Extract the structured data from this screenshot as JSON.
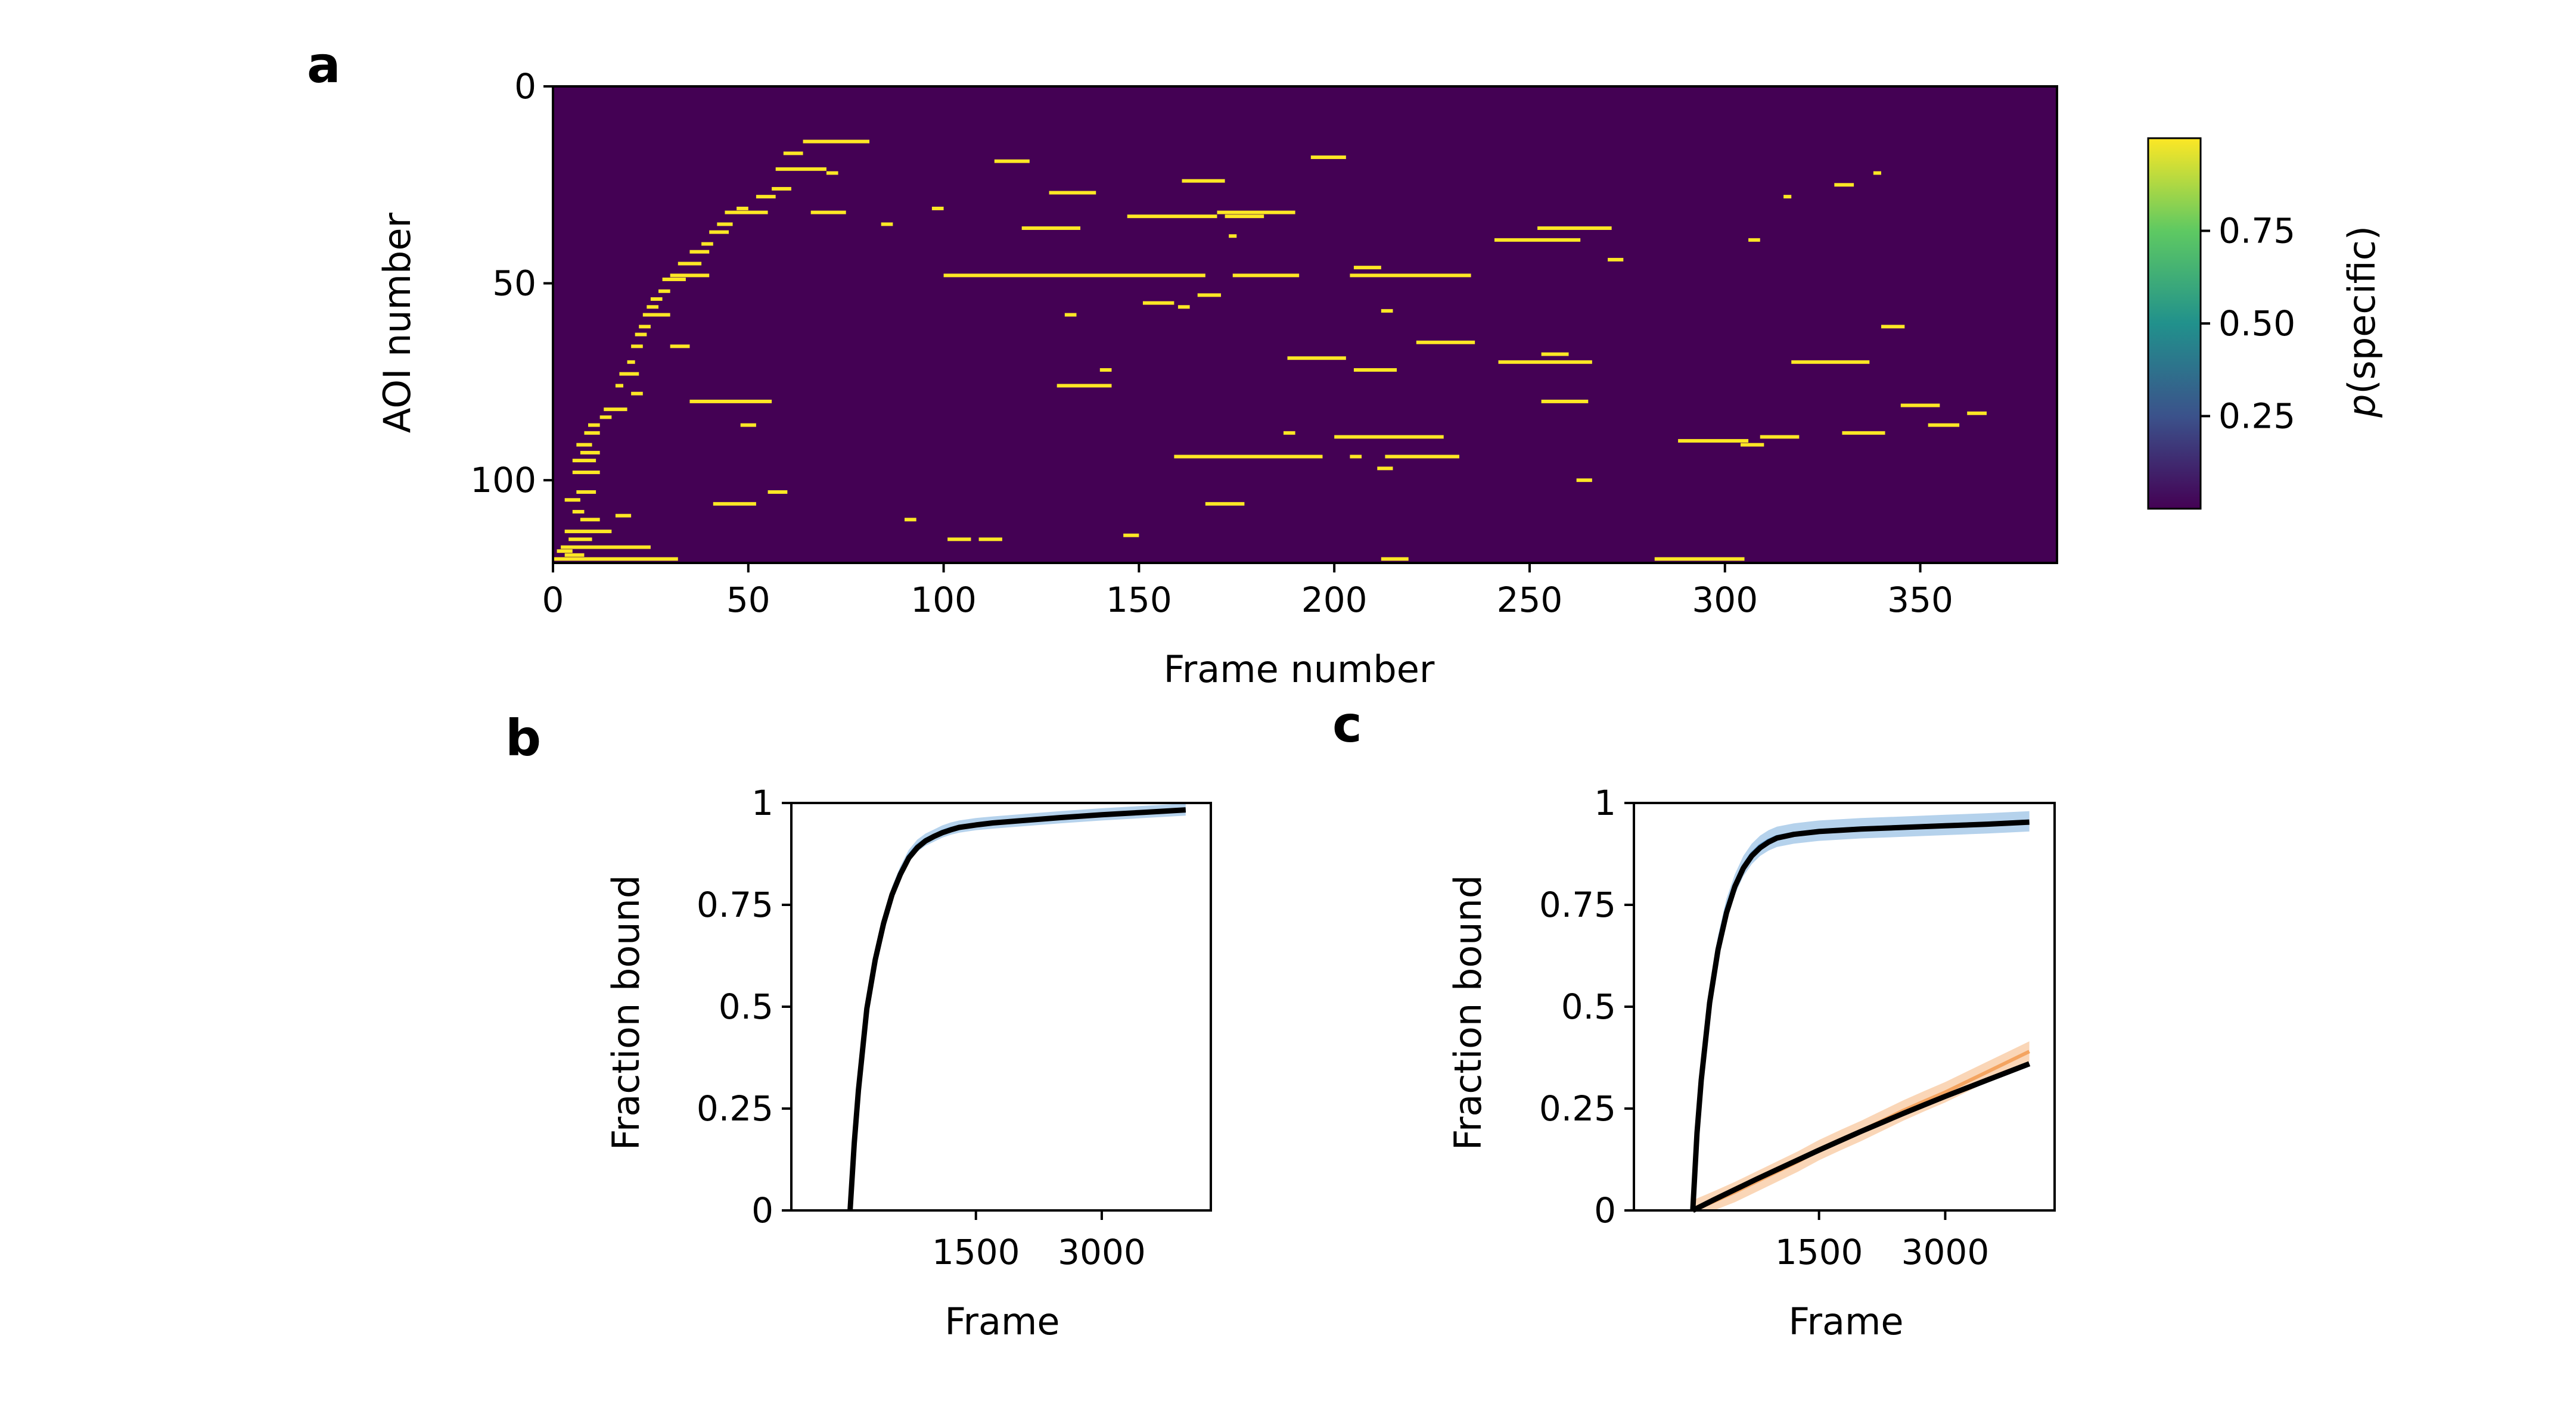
{
  "chart_data": [
    {
      "type": "heatmap",
      "panel_label": "a",
      "xlabel": "Frame number",
      "ylabel": "AOI number",
      "xlim": [
        0,
        385
      ],
      "ylim": [
        121,
        0
      ],
      "xticks": [
        0,
        50,
        100,
        150,
        200,
        250,
        300,
        350
      ],
      "yticks": [
        0,
        50,
        100
      ],
      "colorbar": {
        "label_prefix": "p",
        "label_suffix": "(specific)",
        "ticks": [
          "0.25",
          "0.50",
          "0.75"
        ],
        "range": [
          0,
          1
        ],
        "colors": [
          "#440154",
          "#3b528b",
          "#21918c",
          "#5ec962",
          "#fde725"
        ]
      },
      "background_color": "#440154",
      "segment_color": "#fde725",
      "segments": [
        [
          120,
          0,
          32
        ],
        [
          119,
          3,
          8
        ],
        [
          118,
          1,
          5
        ],
        [
          117,
          2,
          25
        ],
        [
          115,
          4,
          10
        ],
        [
          113,
          3,
          15
        ],
        [
          110,
          7,
          12
        ],
        [
          109,
          16,
          20
        ],
        [
          108,
          5,
          8
        ],
        [
          106,
          41,
          52
        ],
        [
          105,
          3,
          7
        ],
        [
          103,
          6,
          11
        ],
        [
          98,
          5,
          12
        ],
        [
          95,
          5,
          11
        ],
        [
          93,
          7,
          12
        ],
        [
          91,
          6,
          10
        ],
        [
          88,
          8,
          12
        ],
        [
          86,
          9,
          12
        ],
        [
          84,
          12,
          15
        ],
        [
          82,
          13,
          19
        ],
        [
          80,
          35,
          56
        ],
        [
          78,
          20,
          23
        ],
        [
          76,
          16,
          18
        ],
        [
          73,
          17,
          22
        ],
        [
          70,
          19,
          21
        ],
        [
          66,
          20,
          23
        ],
        [
          63,
          21,
          24
        ],
        [
          61,
          22,
          25
        ],
        [
          58,
          23,
          30
        ],
        [
          56,
          24,
          27
        ],
        [
          54,
          25,
          28
        ],
        [
          52,
          27,
          30
        ],
        [
          49,
          28,
          34
        ],
        [
          48,
          30,
          40
        ],
        [
          45,
          32,
          38
        ],
        [
          42,
          35,
          40
        ],
        [
          40,
          38,
          41
        ],
        [
          37,
          40,
          45
        ],
        [
          35,
          42,
          46
        ],
        [
          32,
          44,
          55
        ],
        [
          31,
          47,
          50
        ],
        [
          28,
          52,
          57
        ],
        [
          26,
          56,
          61
        ],
        [
          21,
          57,
          70
        ],
        [
          17,
          59,
          64
        ],
        [
          14,
          64,
          81
        ],
        [
          32,
          66,
          75
        ],
        [
          48,
          100,
          167
        ],
        [
          48,
          174,
          191
        ],
        [
          48,
          204,
          235
        ],
        [
          55,
          151,
          159
        ],
        [
          56,
          160,
          163
        ],
        [
          53,
          165,
          171
        ],
        [
          19,
          113,
          122
        ],
        [
          27,
          127,
          139
        ],
        [
          36,
          120,
          135
        ],
        [
          33,
          147,
          170
        ],
        [
          33,
          172,
          182
        ],
        [
          24,
          161,
          172
        ],
        [
          32,
          170,
          190
        ],
        [
          38,
          173,
          175
        ],
        [
          18,
          194,
          203
        ],
        [
          46,
          205,
          212
        ],
        [
          69,
          188,
          203
        ],
        [
          72,
          205,
          216
        ],
        [
          65,
          221,
          236
        ],
        [
          94,
          159,
          197
        ],
        [
          94,
          204,
          207
        ],
        [
          94,
          213,
          232
        ],
        [
          89,
          200,
          228
        ],
        [
          97,
          211,
          215
        ],
        [
          76,
          129,
          143
        ],
        [
          115,
          109,
          115
        ],
        [
          115,
          101,
          107
        ],
        [
          106,
          167,
          177
        ],
        [
          39,
          241,
          263
        ],
        [
          36,
          252,
          271
        ],
        [
          70,
          242,
          266
        ],
        [
          68,
          253,
          260
        ],
        [
          28,
          315,
          317
        ],
        [
          44,
          270,
          274
        ],
        [
          80,
          253,
          265
        ],
        [
          90,
          288,
          306
        ],
        [
          89,
          309,
          319
        ],
        [
          88,
          330,
          341
        ],
        [
          91,
          304,
          310
        ],
        [
          86,
          352,
          360
        ],
        [
          70,
          317,
          337
        ],
        [
          61,
          340,
          346
        ],
        [
          81,
          345,
          355
        ],
        [
          83,
          362,
          367
        ],
        [
          120,
          282,
          305
        ],
        [
          39,
          306,
          309
        ],
        [
          22,
          338,
          340
        ],
        [
          25,
          328,
          333
        ],
        [
          120,
          212,
          219
        ],
        [
          114,
          146,
          150
        ],
        [
          103,
          55,
          60
        ],
        [
          110,
          90,
          93
        ],
        [
          22,
          70,
          73
        ],
        [
          66,
          30,
          35
        ],
        [
          86,
          48,
          52
        ],
        [
          72,
          140,
          143
        ],
        [
          58,
          131,
          134
        ],
        [
          31,
          97,
          100
        ],
        [
          35,
          84,
          87
        ],
        [
          88,
          187,
          190
        ],
        [
          57,
          212,
          215
        ],
        [
          100,
          262,
          266
        ]
      ]
    },
    {
      "type": "line",
      "panel_label": "b",
      "xlabel": "Frame",
      "ylabel": "Fraction bound",
      "xlim": [
        -700,
        4300
      ],
      "ylim": [
        0,
        1
      ],
      "xticks": [
        1500,
        3000
      ],
      "yticks": [
        0,
        0.25,
        0.5,
        0.75,
        1
      ],
      "ytick_labels": [
        "0",
        "0.25",
        "0.5",
        "0.75",
        "1"
      ],
      "series": [
        {
          "role": "data",
          "color": "#5b9bd5",
          "band": 0.015,
          "x": [
            0,
            50,
            100,
            200,
            300,
            400,
            500,
            600,
            700,
            800,
            900,
            1000,
            1100,
            1200,
            1300,
            1500,
            1700,
            2000,
            2500,
            3000,
            3500,
            4000
          ],
          "y": [
            0.0,
            0.17,
            0.3,
            0.5,
            0.62,
            0.71,
            0.78,
            0.83,
            0.87,
            0.895,
            0.91,
            0.92,
            0.93,
            0.937,
            0.942,
            0.948,
            0.952,
            0.957,
            0.965,
            0.972,
            0.978,
            0.984
          ]
        },
        {
          "role": "fit",
          "color": "#000000",
          "x": [
            0,
            50,
            100,
            200,
            300,
            400,
            500,
            600,
            700,
            800,
            900,
            1000,
            1100,
            1200,
            1300,
            1500,
            1700,
            2000,
            2500,
            3000,
            3500,
            4000
          ],
          "y": [
            0.0,
            0.165,
            0.295,
            0.495,
            0.615,
            0.705,
            0.775,
            0.825,
            0.865,
            0.89,
            0.907,
            0.918,
            0.927,
            0.934,
            0.94,
            0.946,
            0.951,
            0.956,
            0.964,
            0.971,
            0.977,
            0.983
          ]
        }
      ]
    },
    {
      "type": "line",
      "panel_label": "c",
      "xlabel": "Frame",
      "ylabel": "Fraction bound",
      "xlim": [
        -700,
        4300
      ],
      "ylim": [
        0,
        1
      ],
      "xticks": [
        1500,
        3000
      ],
      "yticks": [
        0,
        0.25,
        0.5,
        0.75,
        1
      ],
      "ytick_labels": [
        "0",
        "0.25",
        "0.5",
        "0.75",
        "1"
      ],
      "series": [
        {
          "role": "data",
          "color": "#5b9bd5",
          "band": 0.025,
          "x": [
            0,
            50,
            100,
            200,
            300,
            400,
            500,
            600,
            700,
            800,
            900,
            1000,
            1200,
            1500,
            2000,
            2500,
            3000,
            3500,
            4000
          ],
          "y": [
            0.0,
            0.2,
            0.33,
            0.52,
            0.65,
            0.74,
            0.8,
            0.845,
            0.875,
            0.895,
            0.908,
            0.917,
            0.925,
            0.932,
            0.938,
            0.942,
            0.946,
            0.95,
            0.955
          ]
        },
        {
          "role": "fit",
          "color": "#000000",
          "x": [
            0,
            50,
            100,
            200,
            300,
            400,
            500,
            600,
            700,
            800,
            900,
            1000,
            1200,
            1500,
            2000,
            2500,
            3000,
            3500,
            4000
          ],
          "y": [
            0.0,
            0.19,
            0.32,
            0.51,
            0.64,
            0.73,
            0.795,
            0.84,
            0.87,
            0.89,
            0.904,
            0.914,
            0.923,
            0.93,
            0.936,
            0.94,
            0.944,
            0.948,
            0.953
          ]
        },
        {
          "role": "data",
          "color": "#f4a460",
          "band": 0.025,
          "x": [
            0,
            250,
            500,
            750,
            1000,
            1250,
            1500,
            1750,
            2000,
            2250,
            2500,
            2750,
            3000,
            3250,
            3500,
            3750,
            4000
          ],
          "y": [
            0.0,
            0.022,
            0.045,
            0.07,
            0.095,
            0.12,
            0.148,
            0.172,
            0.195,
            0.22,
            0.245,
            0.268,
            0.29,
            0.315,
            0.34,
            0.365,
            0.39
          ]
        },
        {
          "role": "fit",
          "color": "#000000",
          "x": [
            0,
            250,
            500,
            750,
            1000,
            1250,
            1500,
            1750,
            2000,
            2250,
            2500,
            2750,
            3000,
            3250,
            3500,
            3750,
            4000
          ],
          "y": [
            0.0,
            0.026,
            0.051,
            0.076,
            0.1,
            0.124,
            0.148,
            0.171,
            0.194,
            0.216,
            0.238,
            0.259,
            0.28,
            0.3,
            0.32,
            0.34,
            0.36
          ]
        }
      ]
    }
  ]
}
